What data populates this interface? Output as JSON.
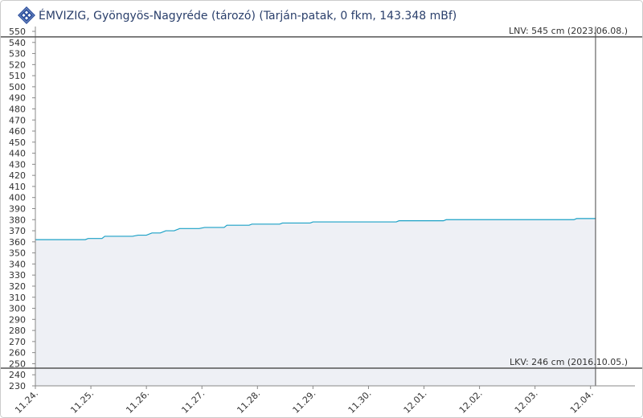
{
  "chart_data": {
    "type": "area",
    "title": "ÉMVIZIG, Gyöngyös-Nagyréde (tározó) (Tarján-patak, 0 fkm, 143.348 mBf)",
    "series": [
      {
        "color": "#1ba1c6",
        "fill": "#eef0f5",
        "x": [
          0,
          0.9,
          0.95,
          1.2,
          1.25,
          1.75,
          1.85,
          2.0,
          2.1,
          2.25,
          2.35,
          2.5,
          2.6,
          2.95,
          3.05,
          3.4,
          3.45,
          3.85,
          3.9,
          4.4,
          4.45,
          4.95,
          5.0,
          6.5,
          6.55,
          7.35,
          7.4,
          9.7,
          9.75,
          10.09
        ],
        "values": [
          362,
          362,
          363,
          363,
          365,
          365,
          366,
          366,
          368,
          368,
          370,
          370,
          372,
          372,
          373,
          373,
          375,
          375,
          376,
          376,
          377,
          377,
          378,
          378,
          379,
          379,
          380,
          380,
          381,
          381
        ]
      }
    ],
    "xlim": [
      0,
      10.8
    ],
    "xticks": [
      {
        "value": 0,
        "label": "11.24."
      },
      {
        "value": 1,
        "label": "11.25."
      },
      {
        "value": 2,
        "label": "11.26."
      },
      {
        "value": 3,
        "label": "11.27."
      },
      {
        "value": 4,
        "label": "11.28."
      },
      {
        "value": 5,
        "label": "11.29."
      },
      {
        "value": 6,
        "label": "11.30."
      },
      {
        "value": 7,
        "label": "12.01."
      },
      {
        "value": 8,
        "label": "12.02."
      },
      {
        "value": 9,
        "label": "12.03."
      },
      {
        "value": 10,
        "label": "12.04."
      }
    ],
    "ylim": [
      230,
      550
    ],
    "yticks": [
      230,
      240,
      250,
      260,
      270,
      280,
      290,
      300,
      310,
      320,
      330,
      340,
      350,
      360,
      370,
      380,
      390,
      400,
      410,
      420,
      430,
      440,
      450,
      460,
      470,
      480,
      490,
      500,
      510,
      520,
      530,
      540,
      550
    ],
    "annotations": [
      {
        "label": "LNV: 545 cm (2023.06.08.)",
        "value": 545
      },
      {
        "label": "LKV: 246 cm (2016.10.05.)",
        "value": 246
      }
    ],
    "grid": false
  }
}
